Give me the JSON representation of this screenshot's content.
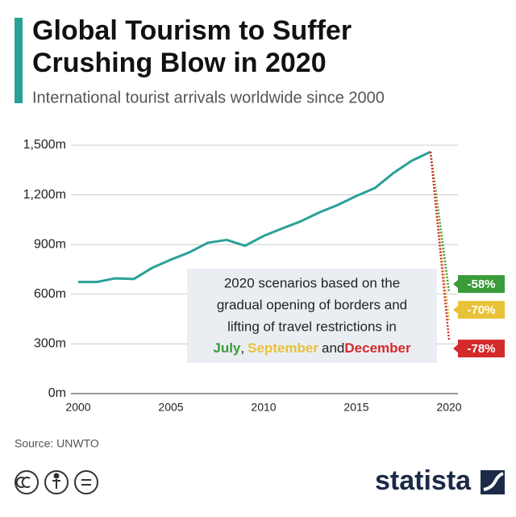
{
  "chart_data": {
    "type": "line",
    "title": [
      "Global Tourism to Suffer",
      "Crushing Blow in 2020"
    ],
    "subtitle": "International tourist arrivals worldwide since 2000",
    "x": [
      2000,
      2001,
      2002,
      2003,
      2004,
      2005,
      2006,
      2007,
      2008,
      2009,
      2010,
      2011,
      2012,
      2013,
      2014,
      2015,
      2016,
      2017,
      2018,
      2019
    ],
    "series": [
      {
        "color": "#2aa198",
        "values": [
          674,
          674,
          696,
          692,
          760,
          809,
          853,
          911,
          928,
          893,
          952,
          997,
          1040,
          1094,
          1139,
          1193,
          1241,
          1332,
          1407,
          1460
        ]
      }
    ],
    "scenarios": [
      {
        "name": "July",
        "color": "#3a9b3a",
        "x": [
          2019,
          2020
        ],
        "values": [
          1460,
          613
        ],
        "label": "-58%"
      },
      {
        "name": "September",
        "color": "#e8c237",
        "x": [
          2019,
          2020
        ],
        "values": [
          1460,
          438
        ],
        "label": "-70%"
      },
      {
        "name": "December",
        "color": "#d42a2a",
        "x": [
          2019,
          2020
        ],
        "values": [
          1460,
          321
        ],
        "label": "-78%"
      }
    ],
    "note": [
      "2020 scenarios based on the",
      "gradual opening of borders and",
      "lifting of travel restrictions in"
    ],
    "note_joiners": [
      ",",
      "and"
    ],
    "xlim": [
      2000,
      2020
    ],
    "xticks": [
      2000,
      2005,
      2010,
      2015,
      2020
    ],
    "ylim": [
      0,
      1500
    ],
    "yticks": [
      {
        "value": 0,
        "label": "0m"
      },
      {
        "value": 300,
        "label": "300m"
      },
      {
        "value": 600,
        "label": "600m"
      },
      {
        "value": 900,
        "label": "900m"
      },
      {
        "value": 1200,
        "label": "1,200m"
      },
      {
        "value": 1500,
        "label": "1,500m"
      }
    ],
    "grid": true,
    "source": "Source: UNWTO",
    "brand": "statista"
  }
}
